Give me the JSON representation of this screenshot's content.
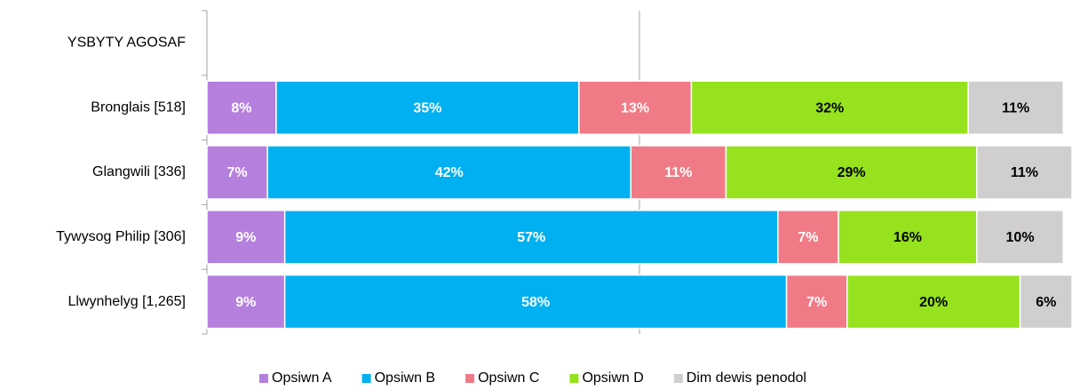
{
  "chart_data": {
    "type": "stacked_barh",
    "categories": [
      "YSBYTY AGOSAF",
      "Bronglais [518]",
      "Glangwili [336]",
      "Tywysog Philip [306]",
      "Llwynhelyg [1,265]"
    ],
    "series": [
      {
        "name": "Opsiwn A",
        "color": "#b57fde",
        "label_color": "#ffffff",
        "values": [
          null,
          8,
          7,
          9,
          9
        ]
      },
      {
        "name": "Opsiwn B",
        "color": "#00b0f0",
        "label_color": "#ffffff",
        "values": [
          null,
          35,
          42,
          57,
          58
        ]
      },
      {
        "name": "Opsiwn C",
        "color": "#f07b87",
        "label_color": "#ffffff",
        "values": [
          null,
          13,
          11,
          7,
          7
        ]
      },
      {
        "name": "Opsiwn D",
        "color": "#97e21e",
        "label_color": "#000000",
        "values": [
          null,
          32,
          29,
          16,
          20
        ]
      },
      {
        "name": "Dim dewis penodol",
        "color": "#d0cece",
        "label_color": "#000000",
        "values": [
          null,
          11,
          11,
          10,
          6
        ]
      }
    ],
    "value_labels": [
      [
        null,
        "8%",
        "7%",
        "9%",
        "9%"
      ],
      [
        null,
        "35%",
        "42%",
        "57%",
        "58%"
      ],
      [
        null,
        "13%",
        "11%",
        "7%",
        "7%"
      ],
      [
        null,
        "32%",
        "29%",
        "16%",
        "20%"
      ],
      [
        null,
        "11%",
        "11%",
        "10%",
        "6%"
      ]
    ],
    "xlim": [
      0,
      100
    ],
    "gridlines": [
      50
    ],
    "legend": "bottom"
  }
}
